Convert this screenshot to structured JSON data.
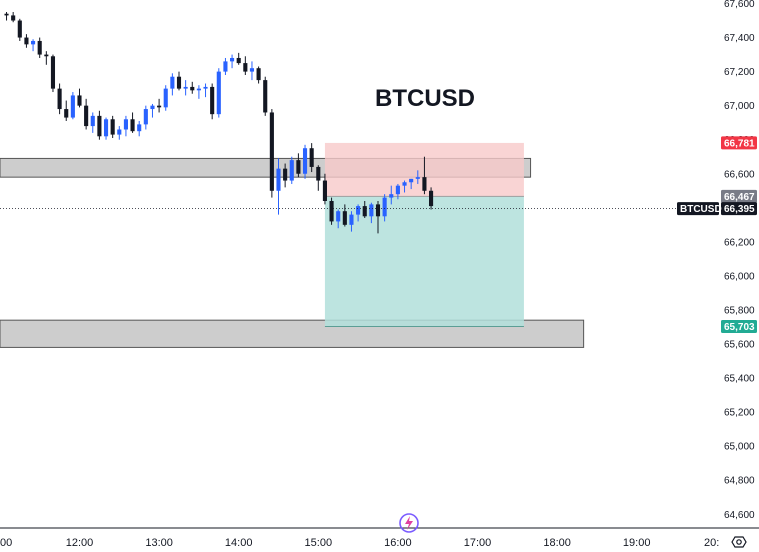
{
  "chart_data": {
    "type": "candlestick",
    "title": "BTCUSD",
    "symbol": "BTCUSD",
    "y_ticks": [
      67600,
      67400,
      67200,
      67000,
      66800,
      66600,
      66400,
      66200,
      66000,
      65800,
      65600,
      65400,
      65200,
      65000,
      64800,
      64600
    ],
    "y_tick_labels": [
      "67,600",
      "67,400",
      "67,200",
      "67,000",
      "66,800",
      "66,600",
      "66,400",
      "66,200",
      "66,000",
      "65,800",
      "65,600",
      "65,400",
      "65,200",
      "65,000",
      "64,800",
      "64,600"
    ],
    "ylim": [
      64520,
      67630
    ],
    "x_tick_labels": [
      {
        "t": "11:00",
        "label": "00"
      },
      {
        "t": "12:00",
        "label": "12:00"
      },
      {
        "t": "13:00",
        "label": "13:00"
      },
      {
        "t": "14:00",
        "label": "14:00"
      },
      {
        "t": "15:00",
        "label": "15:00"
      },
      {
        "t": "16:00",
        "label": "16:00"
      },
      {
        "t": "17:00",
        "label": "17:00"
      },
      {
        "t": "18:00",
        "label": "18:00"
      },
      {
        "t": "19:00",
        "label": "19:00"
      },
      {
        "t": "20:00",
        "label": "20:"
      }
    ],
    "interval_minutes": 5,
    "first_candle_time": "11:05",
    "candles": [
      [
        67540,
        67550,
        67500,
        67530
      ],
      [
        67530,
        67550,
        67490,
        67500
      ],
      [
        67500,
        67510,
        67380,
        67400
      ],
      [
        67400,
        67420,
        67340,
        67360
      ],
      [
        67360,
        67390,
        67320,
        67380
      ],
      [
        67380,
        67400,
        67280,
        67300
      ],
      [
        67300,
        67320,
        67240,
        67290
      ],
      [
        67290,
        67300,
        67080,
        67100
      ],
      [
        67100,
        67130,
        66950,
        66980
      ],
      [
        66980,
        67030,
        66910,
        66930
      ],
      [
        66930,
        67080,
        66920,
        67060
      ],
      [
        67060,
        67100,
        66990,
        67000
      ],
      [
        67000,
        67040,
        66860,
        66880
      ],
      [
        66880,
        66960,
        66840,
        66940
      ],
      [
        66940,
        66970,
        66800,
        66820
      ],
      [
        66820,
        66930,
        66800,
        66920
      ],
      [
        66920,
        66940,
        66810,
        66830
      ],
      [
        66830,
        66880,
        66800,
        66860
      ],
      [
        66860,
        66940,
        66820,
        66920
      ],
      [
        66920,
        66960,
        66840,
        66850
      ],
      [
        66850,
        66910,
        66820,
        66890
      ],
      [
        66890,
        67000,
        66860,
        66980
      ],
      [
        66980,
        67010,
        66930,
        67000
      ],
      [
        67000,
        67040,
        66960,
        66990
      ],
      [
        66990,
        67120,
        66970,
        67100
      ],
      [
        67100,
        67190,
        67060,
        67170
      ],
      [
        67170,
        67200,
        67090,
        67100
      ],
      [
        67100,
        67150,
        67060,
        67110
      ],
      [
        67110,
        67140,
        67070,
        67090
      ],
      [
        67090,
        67120,
        67040,
        67100
      ],
      [
        67100,
        67130,
        67050,
        67110
      ],
      [
        67110,
        67130,
        66920,
        66950
      ],
      [
        66950,
        67220,
        66930,
        67200
      ],
      [
        67200,
        67280,
        67180,
        67260
      ],
      [
        67260,
        67300,
        67220,
        67280
      ],
      [
        67280,
        67310,
        67240,
        67250
      ],
      [
        67250,
        67290,
        67180,
        67200
      ],
      [
        67200,
        67260,
        67150,
        67220
      ],
      [
        67220,
        67230,
        67130,
        67150
      ],
      [
        67150,
        67170,
        66940,
        66960
      ],
      [
        66960,
        66980,
        66460,
        66500
      ],
      [
        66500,
        66690,
        66360,
        66630
      ],
      [
        66630,
        66660,
        66520,
        66560
      ],
      [
        66560,
        66700,
        66540,
        66680
      ],
      [
        66680,
        66720,
        66580,
        66600
      ],
      [
        66600,
        66770,
        66570,
        66750
      ],
      [
        66750,
        66780,
        66610,
        66640
      ],
      [
        66640,
        66650,
        66500,
        66560
      ],
      [
        66560,
        66600,
        66420,
        66440
      ],
      [
        66440,
        66460,
        66300,
        66320
      ],
      [
        66320,
        66390,
        66280,
        66380
      ],
      [
        66380,
        66420,
        66290,
        66300
      ],
      [
        66300,
        66380,
        66260,
        66360
      ],
      [
        66360,
        66420,
        66320,
        66410
      ],
      [
        66410,
        66440,
        66340,
        66350
      ],
      [
        66350,
        66430,
        66310,
        66420
      ],
      [
        66420,
        66440,
        66250,
        66350
      ],
      [
        66350,
        66480,
        66320,
        66460
      ],
      [
        66460,
        66530,
        66420,
        66480
      ],
      [
        66480,
        66540,
        66450,
        66530
      ],
      [
        66530,
        66560,
        66490,
        66550
      ],
      [
        66550,
        66570,
        66510,
        66570
      ],
      [
        66570,
        66620,
        66540,
        66580
      ],
      [
        66580,
        66700,
        66480,
        66500
      ],
      [
        66500,
        66520,
        66390,
        66410
      ]
    ],
    "annotations": {
      "zones": [
        {
          "name": "upper-zone",
          "t_start": "10:55",
          "t_end": "17:40",
          "low": 66580,
          "high": 66690
        },
        {
          "name": "lower-zone",
          "t_start": "10:55",
          "t_end": "18:20",
          "low": 65580,
          "high": 65740
        }
      ],
      "position": {
        "type": "short",
        "t_start": "15:05",
        "t_end": "17:35",
        "entry": 66467,
        "stop": 66781,
        "target": 65703
      }
    },
    "current_price": 66395,
    "price_tags": [
      {
        "name": "stop",
        "label": "66,781",
        "value": 66781,
        "color": "#f23645"
      },
      {
        "name": "entry",
        "label": "66,467",
        "value": 66467,
        "color": "#787b86"
      },
      {
        "name": "current",
        "label": "66,395",
        "value": 66395,
        "color": "#131722",
        "prefix": "BTCUSD"
      },
      {
        "name": "target",
        "label": "65,703",
        "value": 65703,
        "color": "#22ab94"
      }
    ],
    "colors": {
      "up": "#2962ff",
      "down": "#131722",
      "stop_zone": "#f7c9c9",
      "target_zone": "#b2dfdb",
      "zone": "#c8c8c8"
    }
  }
}
